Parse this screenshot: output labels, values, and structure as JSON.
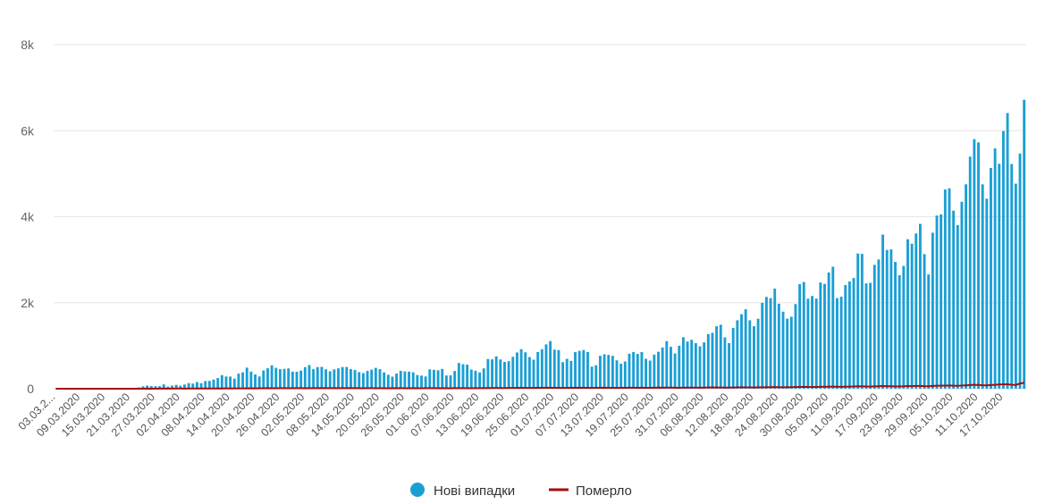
{
  "chart_data": {
    "type": "bar",
    "title": "",
    "xlabel": "",
    "ylabel": "",
    "ylim": [
      0,
      8000
    ],
    "y_ticks": [
      "0",
      "2k",
      "4k",
      "6k",
      "8k"
    ],
    "y_tick_values": [
      0,
      2000,
      4000,
      6000,
      8000
    ],
    "grid": true,
    "legend_placement": "bottom",
    "start_date": "2020-03-03",
    "x_tick_labels": [
      "03.03.2...",
      "09.03.2020",
      "15.03.2020",
      "21.03.2020",
      "27.03.2020",
      "02.04.2020",
      "08.04.2020",
      "14.04.2020",
      "20.04.2020",
      "26.04.2020",
      "02.05.2020",
      "08.05.2020",
      "14.05.2020",
      "20.05.2020",
      "26.05.2020",
      "01.06.2020",
      "07.06.2020",
      "13.06.2020",
      "19.06.2020",
      "25.06.2020",
      "01.07.2020",
      "07.07.2020",
      "13.07.2020",
      "19.07.2020",
      "25.07.2020",
      "31.07.2020",
      "06.08.2020",
      "12.08.2020",
      "18.08.2020",
      "24.08.2020",
      "30.08.2020",
      "05.09.2020",
      "11.09.2020",
      "17.09.2020",
      "23.09.2020",
      "29.09.2020",
      "05.10.2020",
      "11.10.2020",
      "17.10.2020"
    ],
    "series": [
      {
        "name": "Нові випадки",
        "type": "bar",
        "color": "#1a9fd5",
        "values": [
          0,
          0,
          0,
          0,
          0,
          0,
          0,
          0,
          0,
          0,
          0,
          0,
          0,
          0,
          1,
          2,
          3,
          10,
          17,
          20,
          31,
          57,
          73,
          63,
          58,
          60,
          100,
          50,
          72,
          90,
          70,
          98,
          130,
          120,
          155,
          129,
          178,
          181,
          212,
          248,
          316,
          284,
          282,
          235,
          351,
          380,
          491,
          397,
          332,
          285,
          425,
          475,
          546,
          486,
          454,
          462,
          472,
          396,
          395,
          422,
          502,
          550,
          455,
          504,
          508,
          451,
          405,
          451,
          474,
          504,
          505,
          456,
          435,
          386,
          363,
          414,
          443,
          485,
          456,
          380,
          324,
          280,
          354,
          416,
          403,
          397,
          381,
          319,
          306,
          285,
          450,
          441,
          429,
          460,
          307,
          311,
          414,
          598,
          570,
          559,
          445,
          418,
          379,
          473,
          690,
          683,
          753,
          680,
          624,
          640,
          742,
          842,
          921,
          847,
          736,
          675,
          852,
          919,
          1031,
          1109,
          910,
          898,
          618,
          695,
          647,
          853,
          881,
          900,
          853,
          513,
          545,
          766,
          801,
          787,
          765,
          660,
          582,
          633,
          815,
          854,
          809,
          852,
          696,
          655,
          793,
          859,
          958,
          1106,
          975,
          819,
          1000,
          1197,
          1097,
          1137,
          1060,
          986,
          1079,
          1271,
          1300,
          1453,
          1489,
          1195,
          1061,
          1415,
          1592,
          1732,
          1847,
          1592,
          1453,
          1627,
          1997,
          2134,
          2106,
          2328,
          1977,
          1792,
          1628,
          1674,
          1969,
          2432,
          2481,
          2094,
          2156,
          2096,
          2471,
          2438,
          2703,
          2836,
          2106,
          2141,
          2411,
          2495,
          2574,
          3144,
          3136,
          2449,
          2462,
          2881,
          3006,
          3584,
          3228,
          3240,
          2948,
          2639,
          2856,
          3476,
          3373,
          3610,
          3833,
          3130,
          2658,
          3627,
          4027,
          4055,
          4633,
          4661,
          4140,
          3807,
          4348,
          4753,
          5397,
          5804,
          5728,
          4752,
          4420,
          5133,
          5588,
          5230,
          5992,
          6410,
          5226,
          4768,
          5469,
          6719
        ]
      },
      {
        "name": "Померло",
        "type": "line",
        "color": "#a40d0d",
        "values": [
          0,
          0,
          0,
          0,
          0,
          0,
          0,
          0,
          0,
          0,
          0,
          0,
          1,
          1,
          1,
          0,
          0,
          1,
          1,
          0,
          0,
          0,
          2,
          1,
          2,
          2,
          4,
          2,
          3,
          4,
          5,
          3,
          4,
          5,
          4,
          5,
          6,
          4,
          6,
          7,
          5,
          7,
          6,
          8,
          9,
          7,
          8,
          10,
          9,
          11,
          10,
          12,
          10,
          11,
          13,
          12,
          11,
          13,
          14,
          12,
          11,
          13,
          12,
          14,
          15,
          13,
          12,
          14,
          13,
          12,
          14,
          15,
          13,
          12,
          11,
          13,
          12,
          11,
          12,
          11,
          10,
          12,
          11,
          12,
          11,
          10,
          12,
          11,
          10,
          12,
          13,
          12,
          11,
          12,
          10,
          11,
          12,
          13,
          14,
          12,
          11,
          12,
          13,
          14,
          15,
          16,
          17,
          16,
          15,
          17,
          18,
          19,
          20,
          18,
          17,
          19,
          20,
          21,
          23,
          22,
          20,
          21,
          19,
          20,
          22,
          21,
          23,
          22,
          21,
          19,
          20,
          22,
          23,
          21,
          20,
          19,
          21,
          22,
          23,
          24,
          22,
          23,
          21,
          20,
          23,
          25,
          24,
          26,
          25,
          23,
          22,
          26,
          27,
          26,
          25,
          24,
          27,
          28,
          30,
          29,
          28,
          26,
          27,
          29,
          31,
          33,
          32,
          30,
          29,
          31,
          35,
          34,
          36,
          38,
          35,
          33,
          34,
          36,
          39,
          42,
          44,
          41,
          40,
          42,
          45,
          47,
          48,
          50,
          46,
          44,
          48,
          50,
          52,
          56,
          55,
          51,
          50,
          54,
          57,
          61,
          59,
          58,
          55,
          53,
          56,
          62,
          60,
          64,
          66,
          60,
          57,
          65,
          70,
          69,
          73,
          75,
          70,
          67,
          74,
          79,
          86,
          90,
          88,
          80,
          77,
          85,
          92,
          98,
          101,
          104,
          92,
          88,
          120,
          140
        ]
      }
    ]
  }
}
